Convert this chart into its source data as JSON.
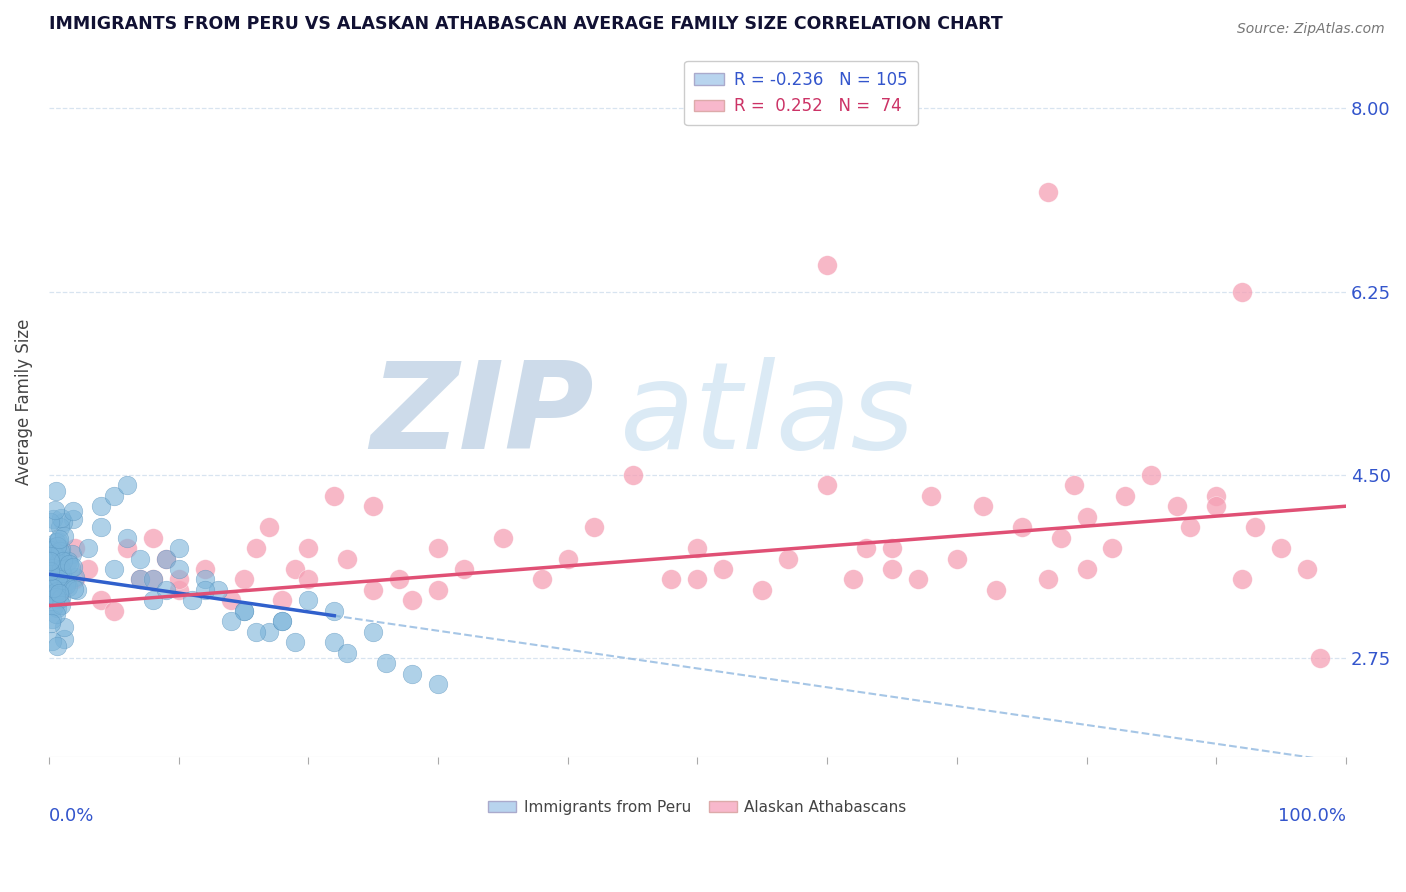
{
  "title": "IMMIGRANTS FROM PERU VS ALASKAN ATHABASCAN AVERAGE FAMILY SIZE CORRELATION CHART",
  "source": "Source: ZipAtlas.com",
  "ylabel": "Average Family Size",
  "yticks": [
    2.75,
    4.5,
    6.25,
    8.0
  ],
  "ylim": [
    1.8,
    8.6
  ],
  "xlim": [
    0.0,
    1.0
  ],
  "peru_color": "#7ab3d9",
  "peru_edge": "#5590bb",
  "alaska_color": "#f5a0b5",
  "alaska_edge": "#e07090",
  "trend_peru_solid_color": "#3060cc",
  "trend_peru_dash_color": "#90b8e0",
  "trend_alaska_color": "#e05075",
  "watermark": "ZIPatlas",
  "watermark_color": "#dce8f0",
  "background_color": "#ffffff",
  "grid_color": "#d8e4f0",
  "ylabel_color": "#444444",
  "axis_label_color": "#3355cc",
  "title_color": "#111133",
  "legend_r1": "R = -0.236",
  "legend_n1": "N = 105",
  "legend_r2": "R =  0.252",
  "legend_n2": "N =  74",
  "legend_bottom1": "Immigrants from Peru",
  "legend_bottom2": "Alaskan Athabascans",
  "source_text": "Source: ZipAtlas.com",
  "peru_r": -0.236,
  "alaska_r": 0.252,
  "peru_n": 105,
  "alaska_n": 74,
  "peru_intercept": 3.55,
  "peru_slope": -1.8,
  "alaska_intercept": 3.25,
  "alaska_slope": 0.95
}
